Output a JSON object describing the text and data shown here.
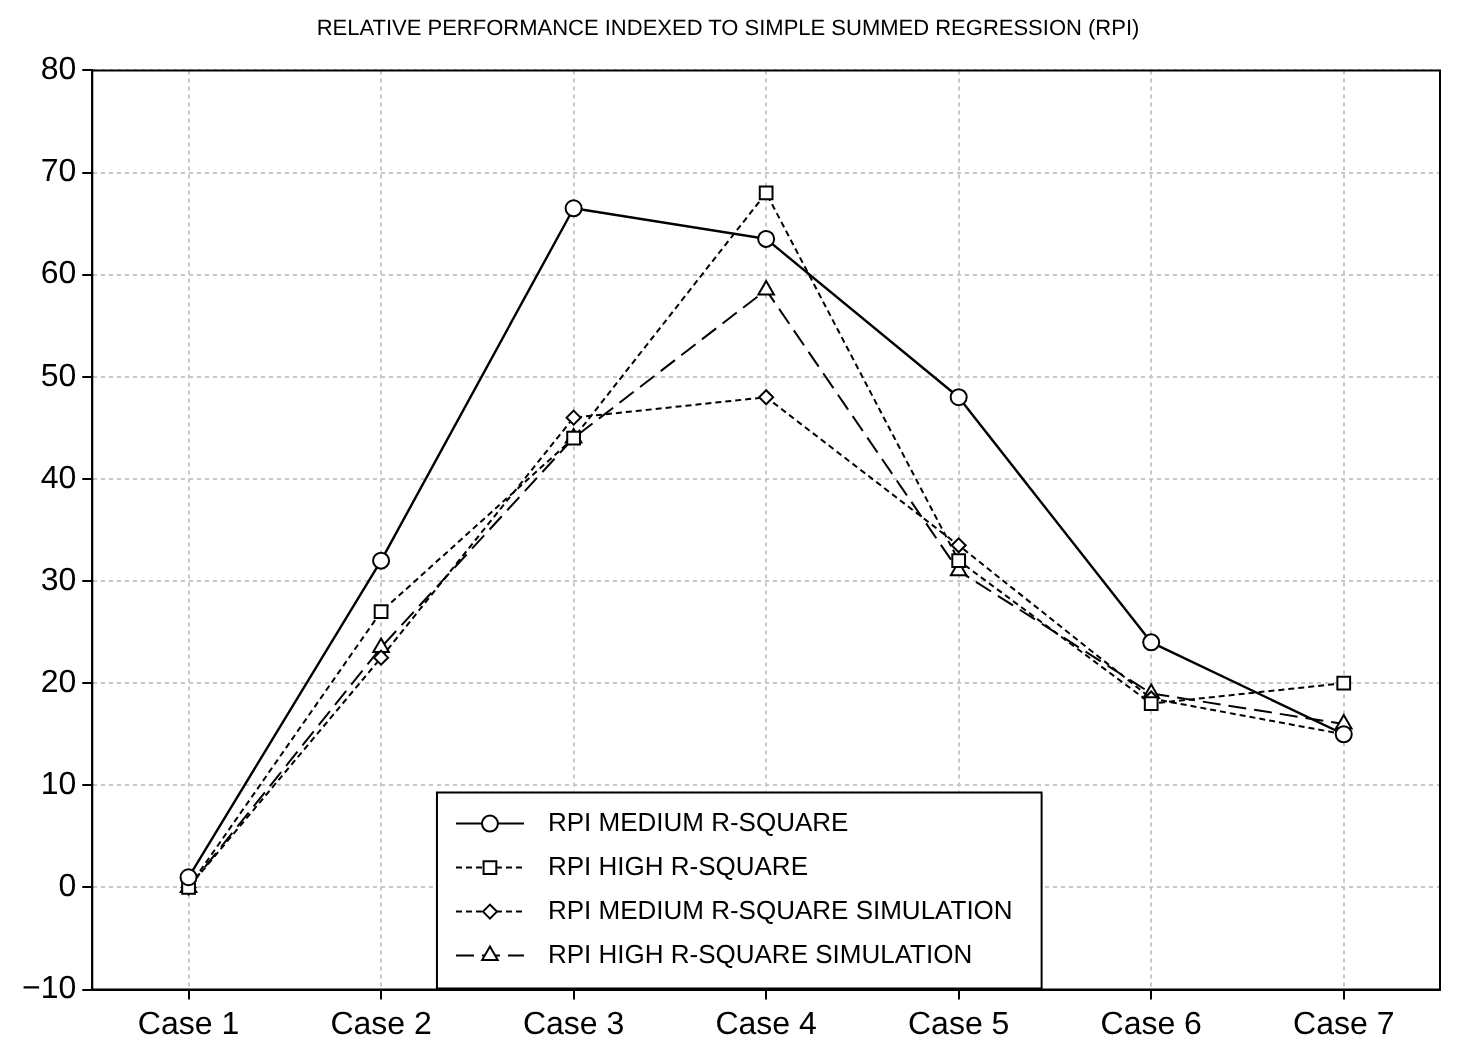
{
  "chart_data": {
    "type": "line",
    "title": "RELATIVE PERFORMANCE INDEXED TO SIMPLE SUMMED REGRESSION (RPI)",
    "categories": [
      "Case 1",
      "Case 2",
      "Case 3",
      "Case 4",
      "Case 5",
      "Case 6",
      "Case 7"
    ],
    "series": [
      {
        "name": "RPI MEDIUM R-SQUARE",
        "color": "#000000",
        "marker": "circle",
        "line_style": "solid",
        "values": [
          1,
          32,
          66.5,
          63.5,
          48,
          24,
          15
        ]
      },
      {
        "name": "RPI HIGH R-SQUARE",
        "color": "#000000",
        "marker": "square",
        "line_style": "dotted",
        "values": [
          0,
          27,
          44,
          68,
          32,
          18,
          20
        ]
      },
      {
        "name": "RPI MEDIUM R-SQUARE SIMULATION",
        "color": "#000000",
        "marker": "diamond",
        "line_style": "dotted",
        "values": [
          0,
          22.5,
          46,
          48,
          33.5,
          18.5,
          15
        ]
      },
      {
        "name": "RPI HIGH R-SQUARE SIMULATION",
        "color": "#000000",
        "marker": "triangle",
        "line_style": "dashed",
        "values": [
          0,
          23.5,
          44,
          58.5,
          31,
          19,
          16
        ]
      }
    ],
    "ylim": [
      -10,
      80
    ],
    "yticks": [
      -10,
      0,
      10,
      20,
      30,
      40,
      50,
      60,
      70,
      80
    ],
    "grid": true,
    "legend": "bottom"
  }
}
